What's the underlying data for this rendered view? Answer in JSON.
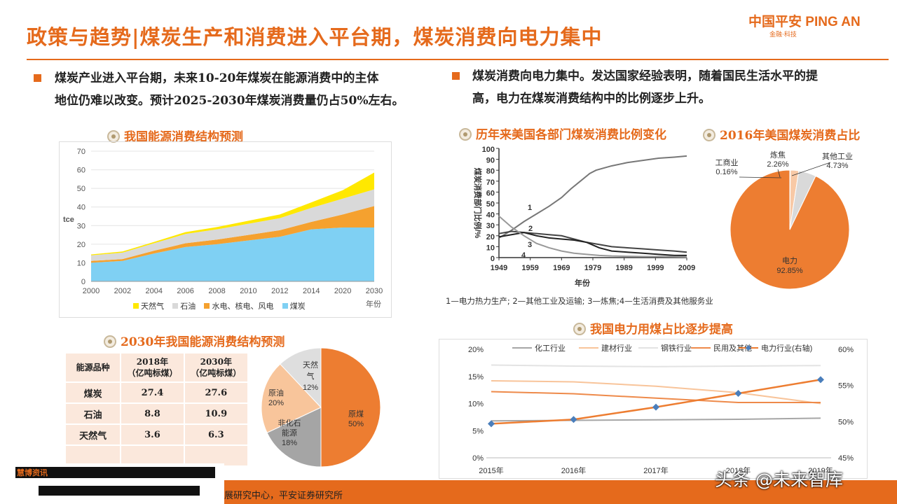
{
  "title": "政策与趋势|煤炭生产和消费进入平台期，煤炭消费向电力集中",
  "logo": {
    "brand": "中国平安 PING AN",
    "sub": "金融·科技"
  },
  "left_bullet": {
    "line1": "煤炭产业进入平台期，未来10-20年煤炭在能源消费中的主体",
    "line2": "地位仍难以改变。预计2025-2030年煤炭消费量仍占50%左右。"
  },
  "right_bullet": {
    "line1": "煤炭消费向电力集中。发达国家经验表明，随着国民生活水平的提",
    "line2": "高，电力在煤炭消费结构中的比例逐步上升。"
  },
  "sections": {
    "china_forecast": "我国能源消费结构预测",
    "china_2030": "2030年我国能源消费结构预测",
    "us_sectors": "历年来美国各部门煤炭消费比例变化",
    "us_2016": "2016年美国煤炭消费占比",
    "power_share": "我国电力用煤占比逐步提高"
  },
  "colors": {
    "accent": "#e56a1c",
    "gas": "#ffe800",
    "oil": "#d9d9d9",
    "hydro": "#f5a12f",
    "coal": "#7fd0f3"
  },
  "chart_data": [
    {
      "type": "area",
      "title": "我国能源消费结构预测",
      "ylabel": "tce",
      "xlabel": "年份",
      "ylim": [
        0,
        70
      ],
      "yticks": [
        "0",
        "10",
        "20",
        "30",
        "40",
        "50",
        "60",
        "70"
      ],
      "xticks": [
        "2000",
        "2002",
        "2004",
        "2006",
        "2008",
        "2010",
        "2012",
        "2014",
        "2020",
        "2030"
      ],
      "x": [
        "2000",
        "2002",
        "2004",
        "2006",
        "2008",
        "2010",
        "2012",
        "2014",
        "2020",
        "2030"
      ],
      "series": [
        {
          "name": "煤炭",
          "values": [
            10,
            11,
            15,
            18.5,
            20,
            22,
            24,
            28,
            29,
            29
          ]
        },
        {
          "name": "水电、核电、风电",
          "values": [
            1,
            1,
            1.5,
            2,
            2.5,
            3,
            3.5,
            4,
            7,
            11.5
          ]
        },
        {
          "name": "石油",
          "values": [
            3,
            3.5,
            4,
            5,
            5.5,
            6,
            6.5,
            7.5,
            8.5,
            9
          ]
        },
        {
          "name": "天然气",
          "values": [
            0.5,
            0.6,
            0.7,
            1,
            1.2,
            1.6,
            2,
            3,
            4.5,
            9
          ]
        }
      ],
      "grid": true,
      "legend": "bottom"
    },
    {
      "type": "table",
      "title": "2030年我国能源消费结构预测",
      "headers": [
        "能源品种",
        "2018年\n（亿吨标煤）",
        "2030年\n（亿吨标煤）"
      ],
      "rows": [
        [
          "煤炭",
          "27.4",
          "27.6"
        ],
        [
          "石油",
          "8.8",
          "10.9"
        ],
        [
          "天然气",
          "3.6",
          "6.3"
        ]
      ]
    },
    {
      "type": "pie",
      "title": "2030年我国能源消费结构预测",
      "slices": [
        {
          "label": "原煤",
          "value": 50,
          "text": "50%"
        },
        {
          "label": "非化石能源",
          "value": 18,
          "text": "18%"
        },
        {
          "label": "原油",
          "value": 20,
          "text": "20%"
        },
        {
          "label": "天然气",
          "value": 12,
          "text": "12%"
        }
      ]
    },
    {
      "type": "line",
      "title": "历年来美国各部门煤炭消费比例变化",
      "ylabel": "煤炭消费部门比例/%",
      "xlabel": "年份",
      "ylim": [
        0,
        100
      ],
      "xlim": [
        1949,
        2009
      ],
      "yticks": [
        "0",
        "10",
        "20",
        "30",
        "40",
        "50",
        "60",
        "70",
        "80",
        "90",
        "100"
      ],
      "xticks": [
        "1949",
        "1959",
        "1969",
        "1979",
        "1989",
        "1999",
        "2009"
      ],
      "caption": "1—电力热力生产; 2—其他工业及运输; 3—炼焦;4—生活消费及其他服务业",
      "series": [
        {
          "name": "1",
          "x": [
            1949,
            1953,
            1957,
            1961,
            1965,
            1969,
            1972,
            1975,
            1978,
            1980,
            1985,
            1990,
            1995,
            2000,
            2005,
            2009
          ],
          "values": [
            18,
            25,
            33,
            40,
            47,
            55,
            63,
            70,
            77,
            80,
            84,
            87,
            89,
            91,
            92,
            93
          ]
        },
        {
          "name": "2",
          "x": [
            1949,
            1953,
            1957,
            1961,
            1965,
            1969,
            1973,
            1977,
            1981,
            1985,
            1990,
            1995,
            2000,
            2005,
            2009
          ],
          "values": [
            22,
            24,
            23,
            22,
            21,
            20,
            17,
            14,
            12,
            10,
            9,
            8,
            7,
            6,
            5
          ]
        },
        {
          "name": "3",
          "x": [
            1949,
            1953,
            1957,
            1961,
            1965,
            1969,
            1973,
            1977,
            1981,
            1985,
            1990,
            1995,
            2000,
            2005,
            2009
          ],
          "values": [
            19,
            21,
            23,
            20,
            18,
            17,
            16,
            14,
            9,
            6,
            5,
            4,
            3,
            2,
            2
          ]
        },
        {
          "name": "4",
          "x": [
            1949,
            1953,
            1957,
            1961,
            1965,
            1969,
            1973,
            1977,
            1981,
            1985,
            1990,
            1995,
            2000,
            2005,
            2009
          ],
          "values": [
            38,
            28,
            20,
            13,
            9,
            6,
            4,
            3,
            2,
            1.5,
            1.2,
            1,
            1,
            0.8,
            0.6
          ]
        }
      ]
    },
    {
      "type": "pie",
      "title": "2016年美国煤炭消费占比",
      "slices": [
        {
          "label": "电力",
          "value": 92.85,
          "text": "92.85%"
        },
        {
          "label": "工商业",
          "value": 0.16,
          "text": "0.16%"
        },
        {
          "label": "炼焦",
          "value": 2.26,
          "text": "2.26%"
        },
        {
          "label": "其他工业",
          "value": 4.73,
          "text": "4.73%"
        }
      ]
    },
    {
      "type": "line",
      "title": "我国电力用煤占比逐步提高",
      "x": [
        "2015年",
        "2016年",
        "2017年",
        "2018年",
        "2019年"
      ],
      "ylim": [
        0,
        20
      ],
      "yticks": [
        "0%",
        "5%",
        "10%",
        "15%",
        "20%"
      ],
      "y2lim": [
        45,
        60
      ],
      "y2ticks": [
        "45%",
        "50%",
        "55%",
        "60%"
      ],
      "series": [
        {
          "name": "化工行业",
          "values": [
            6.8,
            6.9,
            7.0,
            7.1,
            7.3
          ],
          "axis": "left"
        },
        {
          "name": "建材行业",
          "values": [
            14.2,
            14.0,
            13.2,
            12.0,
            10.0
          ],
          "axis": "left"
        },
        {
          "name": "钢铁行业",
          "values": [
            17.1,
            16.9,
            16.8,
            16.9,
            17.0
          ],
          "axis": "left"
        },
        {
          "name": "民用及其他",
          "values": [
            12.2,
            11.8,
            11.0,
            10.2,
            10.2
          ],
          "axis": "left"
        },
        {
          "name": "电力行业(右轴)",
          "values": [
            49.7,
            50.3,
            52.0,
            53.9,
            55.8
          ],
          "axis": "right"
        }
      ],
      "legend": "top"
    }
  ],
  "footer": {
    "source": "展研究中心，平安证券研究所",
    "watermark": "头条 @未来智库",
    "redacted_tag": "慧博资讯"
  }
}
